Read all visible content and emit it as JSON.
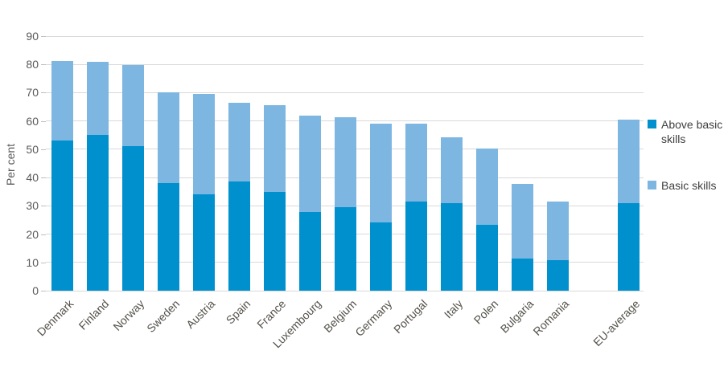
{
  "chart_data": {
    "type": "bar",
    "stacked": true,
    "title": "",
    "ylabel": "Per cent",
    "xlabel": "",
    "ylim": [
      0,
      90
    ],
    "yticks": [
      0,
      10,
      20,
      30,
      40,
      50,
      60,
      70,
      80,
      90
    ],
    "grid": true,
    "legend_position": "right",
    "categories": [
      "Denmark",
      "Finland",
      "Norway",
      "Sweden",
      "Austria",
      "Spain",
      "France",
      "Luxembourg",
      "Belgium",
      "Germany",
      "Portugal",
      "Italy",
      "Polen",
      "Bulgaria",
      "Romania",
      "EU-average"
    ],
    "slots": [
      0,
      1,
      2,
      3,
      4,
      5,
      6,
      7,
      8,
      9,
      10,
      11,
      12,
      13,
      14,
      16
    ],
    "series": [
      {
        "name": "Above basic skills",
        "color": "#0090CE",
        "values": [
          53,
          55,
          51.2,
          38,
          34.2,
          38.6,
          34.8,
          27.8,
          29.4,
          24,
          31.6,
          31,
          23.2,
          11.4,
          10.7,
          31
        ]
      },
      {
        "name": "Basic skills",
        "color": "#7CB6E1",
        "values": [
          28.3,
          26,
          28.5,
          32,
          35.5,
          27.7,
          30.8,
          34.2,
          31.8,
          35,
          27.4,
          23.1,
          27.1,
          26.3,
          20.8,
          29.4
        ]
      }
    ],
    "totals": [
      81.3,
      81,
      79.7,
      70,
      69.7,
      66.3,
      65.6,
      62,
      61.2,
      59,
      59,
      54.1,
      50.3,
      37.7,
      31.5,
      60.4
    ]
  },
  "colors": {
    "above_basic": "#0090CE",
    "basic": "#7CB6E1",
    "gridline": "#d9d9d9",
    "axis_text": "#595959",
    "category_text": "#54514a",
    "legend_text": "#3f3f3f"
  },
  "legend": {
    "items": [
      {
        "label": "Above basic skills"
      },
      {
        "label": "Basic skills"
      }
    ]
  }
}
